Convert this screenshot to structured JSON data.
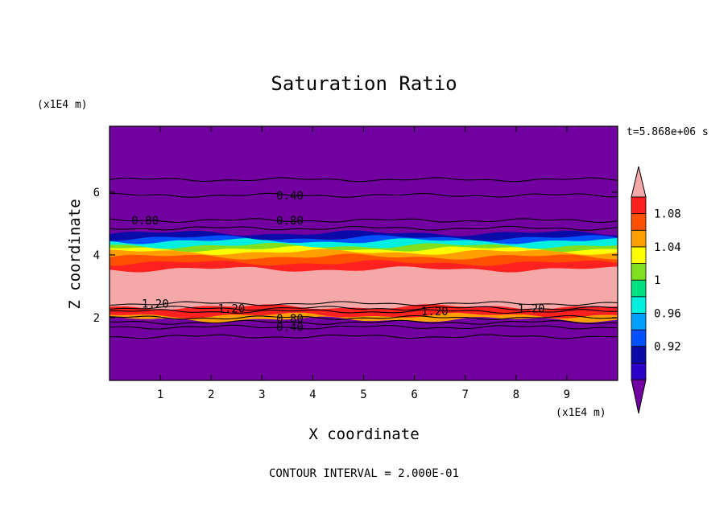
{
  "chart_data": {
    "type": "heatmap",
    "title": "Saturation Ratio",
    "xlabel": "X coordinate",
    "ylabel": "Z coordinate",
    "x_unit": "(x1E4 m)",
    "y_unit": "(x1E4 m)",
    "time_label": "t=5.868e+06 s",
    "footer": "CONTOUR INTERVAL = 2.000E-01",
    "xlim": [
      0,
      10
    ],
    "ylim": [
      0,
      8.1
    ],
    "x_ticks": [
      "1",
      "2",
      "3",
      "4",
      "5",
      "6",
      "7",
      "8",
      "9"
    ],
    "y_ticks": [
      "2",
      "4",
      "6"
    ],
    "colorbar": {
      "levels": [
        0.88,
        0.9,
        0.92,
        0.94,
        0.96,
        0.98,
        1.0,
        1.02,
        1.04,
        1.06,
        1.08,
        1.1
      ],
      "colors": [
        "#7200a0",
        "#2a00c8",
        "#0a0aa8",
        "#0050ff",
        "#00a0ff",
        "#00f0e0",
        "#00e080",
        "#80e020",
        "#ffff00",
        "#ffa000",
        "#ff5000",
        "#ff2020",
        "#f5a8a8"
      ],
      "tick_labels": [
        "0.92",
        "0.96",
        "1",
        "1.04",
        "1.08"
      ],
      "tick_values": [
        0.92,
        0.96,
        1.0,
        1.04,
        1.08
      ]
    },
    "bands": [
      {
        "z0": 0.0,
        "z1": 1.95,
        "color": "#7200a0"
      },
      {
        "z0": 1.95,
        "z1": 2.08,
        "color": "#ffa000"
      },
      {
        "z0": 2.08,
        "z1": 2.35,
        "color": "#ff2020"
      },
      {
        "z0": 2.35,
        "z1": 3.55,
        "color": "#f5a8a8"
      },
      {
        "z0": 3.55,
        "z1": 3.75,
        "color": "#ff2020"
      },
      {
        "z0": 3.75,
        "z1": 3.95,
        "color": "#ff5000"
      },
      {
        "z0": 3.95,
        "z1": 4.1,
        "color": "#ffa000"
      },
      {
        "z0": 4.1,
        "z1": 4.2,
        "color": "#ffff00"
      },
      {
        "z0": 4.2,
        "z1": 4.3,
        "color": "#80e020"
      },
      {
        "z0": 4.3,
        "z1": 4.45,
        "color": "#00f0e0"
      },
      {
        "z0": 4.45,
        "z1": 4.55,
        "color": "#0050ff"
      },
      {
        "z0": 4.55,
        "z1": 4.7,
        "color": "#0a0aa8"
      },
      {
        "z0": 4.7,
        "z1": 8.1,
        "color": "#7200a0"
      }
    ],
    "contour_lines_z": [
      6.4,
      5.9,
      5.1,
      4.85,
      2.45,
      2.3,
      2.2,
      2.0,
      1.85,
      1.7,
      1.4
    ],
    "contour_labels": [
      {
        "text": "0.40",
        "x": 3.55,
        "z": 5.9
      },
      {
        "text": "0.80",
        "x": 3.55,
        "z": 5.1
      },
      {
        "text": "0.80",
        "x": 0.7,
        "z": 5.1
      },
      {
        "text": "1.20",
        "x": 0.9,
        "z": 2.45
      },
      {
        "text": "1.20",
        "x": 2.4,
        "z": 2.3
      },
      {
        "text": "1.20",
        "x": 6.4,
        "z": 2.2
      },
      {
        "text": "1.20",
        "x": 8.3,
        "z": 2.3
      },
      {
        "text": "0.80",
        "x": 3.55,
        "z": 1.97
      },
      {
        "text": "0.40",
        "x": 3.55,
        "z": 1.7
      }
    ]
  }
}
